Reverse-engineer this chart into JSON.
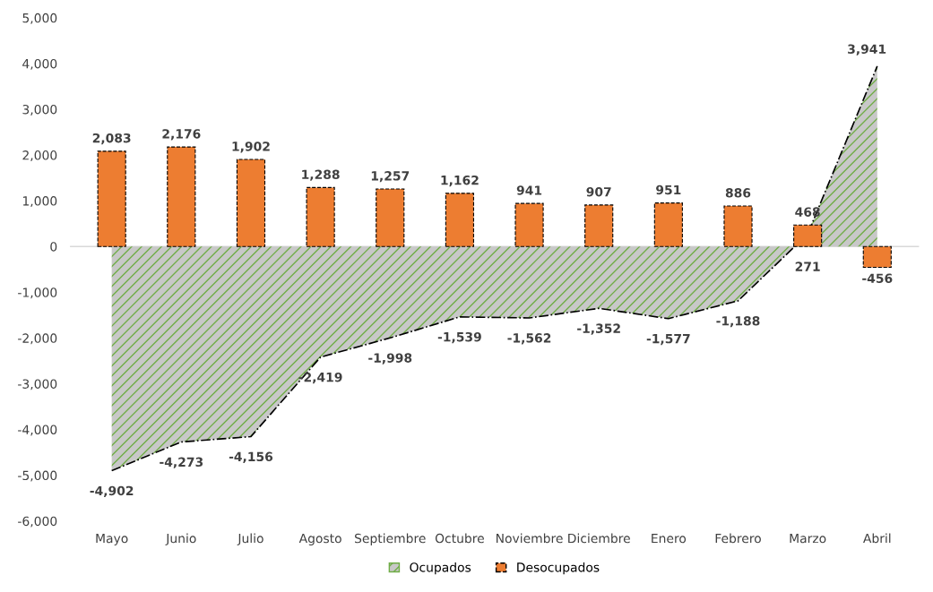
{
  "chart_data": {
    "type": "bar",
    "categories": [
      "Mayo",
      "Junio",
      "Julio",
      "Agosto",
      "Septiembre",
      "Octubre",
      "Noviembre",
      "Diciembre",
      "Enero",
      "Febrero",
      "Marzo",
      "Abril"
    ],
    "series": [
      {
        "name": "Ocupados",
        "type": "area",
        "color": "#70ad47",
        "values": [
          -4902,
          -4273,
          -4156,
          -2419,
          -1998,
          -1539,
          -1562,
          -1352,
          -1577,
          -1188,
          271,
          3941
        ],
        "value_labels": [
          "-4,902",
          "-4,273",
          "-4,156",
          "-2,419",
          "-1,998",
          "-1,539",
          "-1,562",
          "-1,352",
          "-1,577",
          "-1,188",
          "271",
          "3,941"
        ]
      },
      {
        "name": "Desocupados",
        "color": "#ed7d31",
        "values": [
          2083,
          2176,
          1902,
          1288,
          1257,
          1162,
          941,
          907,
          951,
          886,
          468,
          -456
        ],
        "value_labels": [
          "2,083",
          "2,176",
          "1,902",
          "1,288",
          "1,257",
          "1,162",
          "941",
          "907",
          "951",
          "886",
          "468",
          "-456"
        ]
      }
    ],
    "ylim": [
      -6000,
      5000
    ],
    "yticks": [
      {
        "value": -6000,
        "label": "-6,000"
      },
      {
        "value": -5000,
        "label": "-5,000"
      },
      {
        "value": -4000,
        "label": "-4,000"
      },
      {
        "value": -3000,
        "label": "-3,000"
      },
      {
        "value": -2000,
        "label": "-2,000"
      },
      {
        "value": -1000,
        "label": "-1,000"
      },
      0,
      {
        "value": 1000,
        "label": "1,000"
      },
      {
        "value": 2000,
        "label": "2,000"
      },
      {
        "value": 3000,
        "label": "3,000"
      },
      {
        "value": 4000,
        "label": "4,000"
      },
      {
        "value": 5000,
        "label": "5,000"
      }
    ],
    "ref_lines": [
      {
        "axis": "y",
        "value": 0,
        "color": "#d9d9d9"
      }
    ],
    "legend": "bottom"
  }
}
